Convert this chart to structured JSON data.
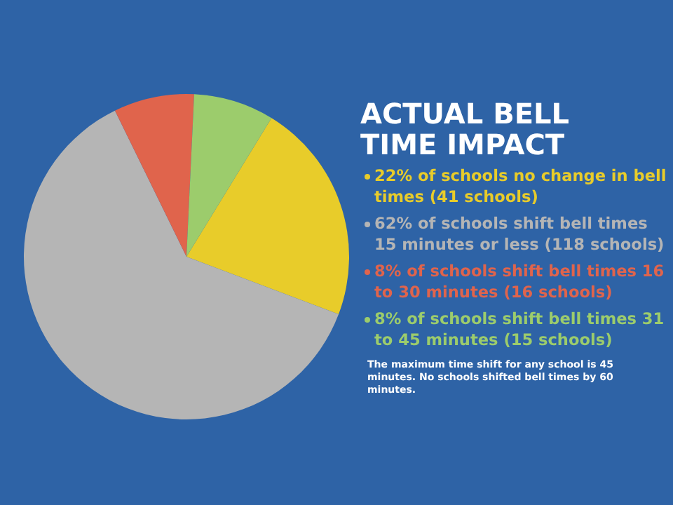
{
  "chart_data": {
    "type": "pie",
    "title": "ACTUAL BELL TIME IMPACT",
    "categories": [
      "22% of schools no change in bell times (41 schools)",
      "62% of schools shift bell times 15 minutes or less (118 schools)",
      "8% of schools shift bell times 16 to 30 minutes (16 schools)",
      "8% of schools shift bell times 31 to 45 minutes (15 schools)"
    ],
    "values": [
      22,
      62,
      8,
      8
    ],
    "colors": [
      "#e8cc2a",
      "#b5b5b5",
      "#e0644c",
      "#9ccc6c"
    ],
    "legend": "right",
    "annotations": [
      "The maximum time shift for any school is 45 minutes. No schools shifted bell times by 60 minutes."
    ]
  }
}
